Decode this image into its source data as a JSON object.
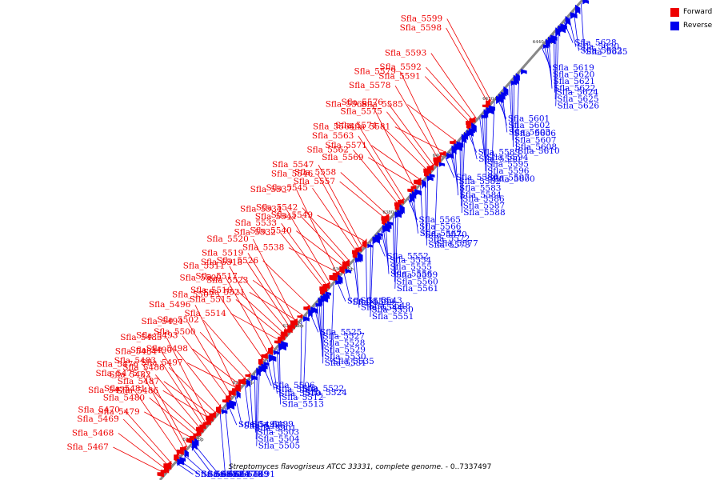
{
  "caption": {
    "organism": "Streptomyces flavogriseus ATCC 33331, complete genome.",
    "range": " - 0..7337497"
  },
  "legend": [
    {
      "label": "Forward",
      "color": "#ee0000"
    },
    {
      "label": "Reverse",
      "color": "#0000ee"
    }
  ],
  "colors": {
    "forward": "#ee0000",
    "reverse": "#0000ee",
    "axis": "#888888"
  },
  "scale_ticks": [
    "6300 kbp",
    "6320 kbp",
    "6340 kbp",
    "6360 kbp",
    "6380 kbp",
    "6400 kbp",
    "6420 kbp",
    "6440 kbp"
  ],
  "forward_genes": [
    "Sfla_5467",
    "Sfla_5468",
    "Sfla_5469",
    "Sfla_5470",
    "Sfla_5473",
    "Sfla_5475",
    "Sfla_5476",
    "Sfla_5479",
    "Sfla_5480",
    "Sfla_5481",
    "Sfla_5482",
    "Sfla_5483",
    "Sfla_5484",
    "Sfla_5485",
    "Sfla_5486",
    "Sfla_5487",
    "Sfla_5488",
    "Sfla_5490",
    "Sfla_5493",
    "Sfla_5494",
    "Sfla_5496",
    "Sfla_5497",
    "Sfla_5498",
    "Sfla_5500",
    "Sfla_5502",
    "Sfla_5507",
    "Sfla_5509",
    "Sfla_5511",
    "Sfla_5514",
    "Sfla_5515",
    "Sfla_5516",
    "Sfla_5517",
    "Sfla_5518",
    "Sfla_5519",
    "Sfla_5520",
    "Sfla_5521",
    "Sfla_5523",
    "Sfla_5526",
    "Sfla_5532",
    "Sfla_5533",
    "Sfla_5534",
    "Sfla_5537",
    "Sfla_5538",
    "Sfla_5540",
    "Sfla_5541",
    "Sfla_5542",
    "Sfla_5545",
    "Sfla_5546",
    "Sfla_5547",
    "Sfla_5549",
    "Sfla_5557",
    "Sfla_5558",
    "Sfla_5562",
    "Sfla_5563",
    "Sfla_5564",
    "Sfla_5568",
    "Sfla_5569",
    "Sfla_5571",
    "Sfla_5574",
    "Sfla_5575",
    "Sfla_5576",
    "Sfla_5578",
    "Sfla_5579",
    "Sfla_5581",
    "Sfla_5585",
    "Sfla_5591",
    "Sfla_5592",
    "Sfla_5593",
    "Sfla_5598",
    "Sfla_5599"
  ],
  "reverse_genes": [
    "Sfla_5471",
    "Sfla_5472",
    "Sfla_5474",
    "Sfla_5477",
    "Sfla_5478",
    "Sfla_5489",
    "Sfla_5491",
    "Sfla_5492",
    "Sfla_5495",
    "Sfla_5499",
    "Sfla_5501",
    "Sfla_5503",
    "Sfla_5504",
    "Sfla_5505",
    "Sfla_5506",
    "Sfla_5508",
    "Sfla_5510",
    "Sfla_5512",
    "Sfla_5513",
    "Sfla_5522",
    "Sfla_5524",
    "Sfla_5525",
    "Sfla_5527",
    "Sfla_5528",
    "Sfla_5529",
    "Sfla_5530",
    "Sfla_5531",
    "Sfla_5535",
    "Sfla_5536",
    "Sfla_5539",
    "Sfla_5543",
    "Sfla_5544",
    "Sfla_5548",
    "Sfla_5550",
    "Sfla_5551",
    "Sfla_5552",
    "Sfla_5554",
    "Sfla_5555",
    "Sfla_5556",
    "Sfla_5559",
    "Sfla_5560",
    "Sfla_5561",
    "Sfla_5565",
    "Sfla_5566",
    "Sfla_5567",
    "Sfla_5570",
    "Sfla_5572",
    "Sfla_5573",
    "Sfla_5577",
    "Sfla_5580",
    "Sfla_5582",
    "Sfla_5583",
    "Sfla_5584",
    "Sfla_5586",
    "Sfla_5587",
    "Sfla_5588",
    "Sfla_5589",
    "Sfla_5590",
    "Sfla_5594",
    "Sfla_5595",
    "Sfla_5596",
    "Sfla_5597",
    "Sfla_5600",
    "Sfla_5601",
    "Sfla_5602",
    "Sfla_5603",
    "Sfla_5606",
    "Sfla_5607",
    "Sfla_5608",
    "Sfla_5610",
    "Sfla_5619",
    "Sfla_5620",
    "Sfla_5621",
    "Sfla_5622",
    "Sfla_5624",
    "Sfla_5625",
    "Sfla_5626",
    "Sfla_5628",
    "Sfla_5630",
    "Sfla_5632",
    "Sfla_5635"
  ]
}
